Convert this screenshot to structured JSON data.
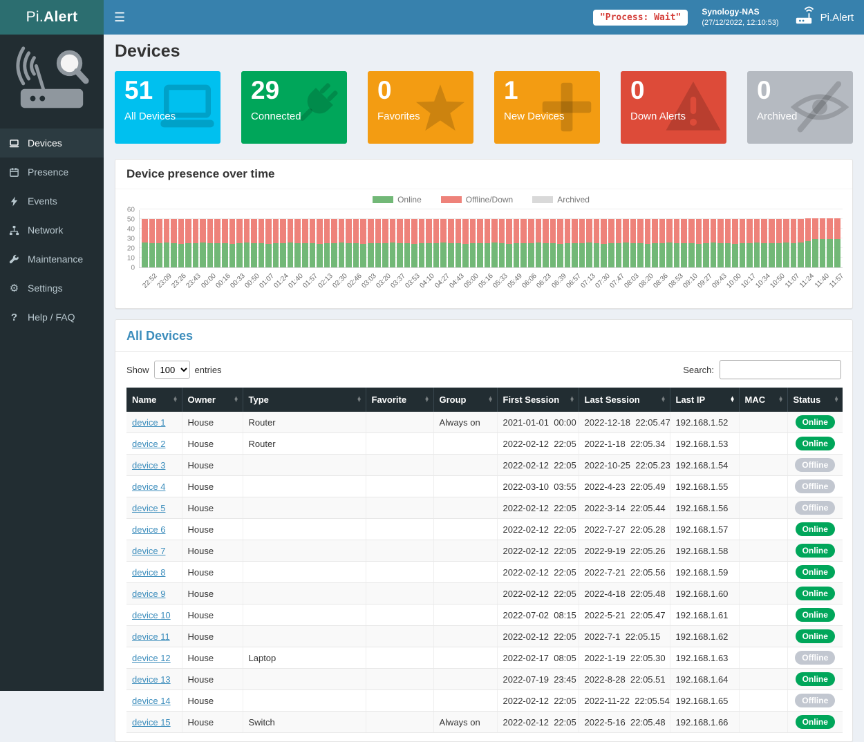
{
  "topbar": {
    "hamburger": "☰",
    "brand_prefix": "Pi.",
    "brand_suffix": "Alert",
    "process_status": "\"Process: Wait\"",
    "host_name": "Synology-NAS",
    "host_time": "(27/12/2022, 12:10:53)",
    "app_name": "Pi.Alert"
  },
  "sidebar": {
    "items": [
      {
        "label": "Devices",
        "icon": "devices-icon",
        "active": true
      },
      {
        "label": "Presence",
        "icon": "presence-icon",
        "active": false
      },
      {
        "label": "Events",
        "icon": "events-icon",
        "active": false
      },
      {
        "label": "Network",
        "icon": "network-icon",
        "active": false
      },
      {
        "label": "Maintenance",
        "icon": "maintenance-icon",
        "active": false
      },
      {
        "label": "Settings",
        "icon": "settings-icon",
        "active": false
      },
      {
        "label": "Help / FAQ",
        "icon": "help-icon",
        "active": false
      }
    ]
  },
  "page": {
    "title": "Devices"
  },
  "stats": [
    {
      "value": "51",
      "label": "All Devices",
      "color": "#00c0ef",
      "icon": "computer-icon"
    },
    {
      "value": "29",
      "label": "Connected",
      "color": "#00a65a",
      "icon": "plug-icon"
    },
    {
      "value": "0",
      "label": "Favorites",
      "color": "#f39c12",
      "icon": "star-icon"
    },
    {
      "value": "1",
      "label": "New Devices",
      "color": "#f39c12",
      "icon": "plus-icon"
    },
    {
      "value": "0",
      "label": "Down Alerts",
      "color": "#dd4b39",
      "icon": "warning-icon"
    },
    {
      "value": "0",
      "label": "Archived",
      "color": "#b5bac1",
      "icon": "eye-slash-icon"
    }
  ],
  "chart_data": {
    "type": "bar",
    "stacked": true,
    "title": "Device presence over time",
    "xlabel": "",
    "ylabel": "",
    "ylim": [
      0,
      60
    ],
    "yticks": [
      0,
      10,
      20,
      30,
      40,
      50,
      60
    ],
    "grid": true,
    "legend_position": "top",
    "bars_per_category": 2,
    "categories": [
      "22:52",
      "23:09",
      "23:26",
      "23:43",
      "00:00",
      "00:16",
      "00:33",
      "00:50",
      "01:07",
      "01:24",
      "01:40",
      "01:57",
      "02:13",
      "02:30",
      "02:46",
      "03:03",
      "03:20",
      "03:37",
      "03:53",
      "04:10",
      "04:27",
      "04:43",
      "05:00",
      "05:16",
      "05:33",
      "05:49",
      "06:06",
      "06:23",
      "06:39",
      "06:57",
      "07:13",
      "07:30",
      "07:47",
      "08:03",
      "08:20",
      "08:36",
      "08:53",
      "09:10",
      "09:27",
      "09:43",
      "10:00",
      "10:17",
      "10:34",
      "10:50",
      "11:07",
      "11:24",
      "11:40",
      "11:57"
    ],
    "series": [
      {
        "name": "Online",
        "color": "#72b877",
        "values": [
          26,
          25,
          25,
          26,
          25,
          24,
          25,
          25,
          26,
          25,
          25,
          25,
          24,
          25,
          26,
          25,
          25,
          24,
          25,
          25,
          26,
          25,
          25,
          25,
          24,
          25,
          25,
          26,
          25,
          25,
          24,
          25,
          25,
          25,
          26,
          25,
          25,
          24,
          25,
          25,
          25,
          26,
          25,
          25,
          24,
          25,
          25,
          25,
          26,
          25,
          24,
          25,
          25,
          25,
          26,
          25,
          25,
          24,
          25,
          25,
          25,
          26,
          25,
          24,
          25,
          25,
          26,
          25,
          25,
          24,
          25,
          25,
          26,
          25,
          25,
          25,
          24,
          25,
          26,
          25,
          25,
          24,
          25,
          25,
          26,
          25,
          25,
          25,
          26,
          25,
          26,
          27,
          29,
          29,
          29,
          29
        ]
      },
      {
        "name": "Offline/Down",
        "color": "#ee827a",
        "values": [
          24,
          25,
          25,
          24,
          25,
          26,
          25,
          25,
          24,
          25,
          25,
          25,
          26,
          25,
          24,
          25,
          25,
          26,
          25,
          25,
          24,
          25,
          25,
          25,
          26,
          25,
          25,
          24,
          25,
          25,
          26,
          25,
          25,
          25,
          24,
          25,
          25,
          26,
          25,
          25,
          25,
          24,
          25,
          25,
          26,
          25,
          25,
          25,
          24,
          25,
          26,
          25,
          25,
          25,
          24,
          25,
          25,
          26,
          25,
          25,
          25,
          24,
          25,
          26,
          25,
          25,
          24,
          25,
          25,
          26,
          25,
          25,
          24,
          25,
          25,
          25,
          26,
          25,
          24,
          25,
          25,
          26,
          25,
          25,
          24,
          25,
          25,
          25,
          24,
          25,
          24,
          24,
          22,
          22,
          22,
          22
        ]
      },
      {
        "name": "Archived",
        "color": "#d9d9d9",
        "values": []
      }
    ]
  },
  "devices_table": {
    "title": "All Devices",
    "show_label": "Show",
    "entries_label": "entries",
    "page_length": "100",
    "search_label": "Search:",
    "search_value": "",
    "sorted_column": "Last IP",
    "columns": [
      "Name",
      "Owner",
      "Type",
      "Favorite",
      "Group",
      "First Session",
      "Last Session",
      "Last IP",
      "MAC",
      "Status"
    ],
    "rows": [
      [
        "device 1",
        "House",
        "Router",
        "",
        "Always on",
        "2021-01-01  00:00",
        "2022-12-18  22:05.47",
        "192.168.1.52",
        "",
        "Online"
      ],
      [
        "device 2",
        "House",
        "Router",
        "",
        "",
        "2022-02-12  22:05",
        "2022-1-18  22:05.34",
        "192.168.1.53",
        "",
        "Online"
      ],
      [
        "device 3",
        "House",
        "",
        "",
        "",
        "2022-02-12  22:05",
        "2022-10-25  22:05.23",
        "192.168.1.54",
        "",
        "Offline"
      ],
      [
        "device 4",
        "House",
        "",
        "",
        "",
        "2022-03-10  03:55",
        "2022-4-23  22:05.49",
        "192.168.1.55",
        "",
        "Offline"
      ],
      [
        "device 5",
        "House",
        "",
        "",
        "",
        "2022-02-12  22:05",
        "2022-3-14  22:05.44",
        "192.168.1.56",
        "",
        "Offline"
      ],
      [
        "device 6",
        "House",
        "",
        "",
        "",
        "2022-02-12  22:05",
        "2022-7-27  22:05.28",
        "192.168.1.57",
        "",
        "Online"
      ],
      [
        "device 7",
        "House",
        "",
        "",
        "",
        "2022-02-12  22:05",
        "2022-9-19  22:05.26",
        "192.168.1.58",
        "",
        "Online"
      ],
      [
        "device 8",
        "House",
        "",
        "",
        "",
        "2022-02-12  22:05",
        "2022-7-21  22:05.56",
        "192.168.1.59",
        "",
        "Online"
      ],
      [
        "device 9",
        "House",
        "",
        "",
        "",
        "2022-02-12  22:05",
        "2022-4-18  22:05.48",
        "192.168.1.60",
        "",
        "Online"
      ],
      [
        "device 10",
        "House",
        "",
        "",
        "",
        "2022-07-02  08:15",
        "2022-5-21  22:05.47",
        "192.168.1.61",
        "",
        "Online"
      ],
      [
        "device 11",
        "House",
        "",
        "",
        "",
        "2022-02-12  22:05",
        "2022-7-1  22:05.15",
        "192.168.1.62",
        "",
        "Online"
      ],
      [
        "device 12",
        "House",
        "Laptop",
        "",
        "",
        "2022-02-17  08:05",
        "2022-1-19  22:05.30",
        "192.168.1.63",
        "",
        "Offline"
      ],
      [
        "device 13",
        "House",
        "",
        "",
        "",
        "2022-07-19  23:45",
        "2022-8-28  22:05.51",
        "192.168.1.64",
        "",
        "Online"
      ],
      [
        "device 14",
        "House",
        "",
        "",
        "",
        "2022-02-12  22:05",
        "2022-11-22  22:05.54",
        "192.168.1.65",
        "",
        "Offline"
      ],
      [
        "device 15",
        "House",
        "Switch",
        "",
        "Always on",
        "2022-02-12  22:05",
        "2022-5-16  22:05.48",
        "192.168.1.66",
        "",
        "Online"
      ]
    ]
  }
}
